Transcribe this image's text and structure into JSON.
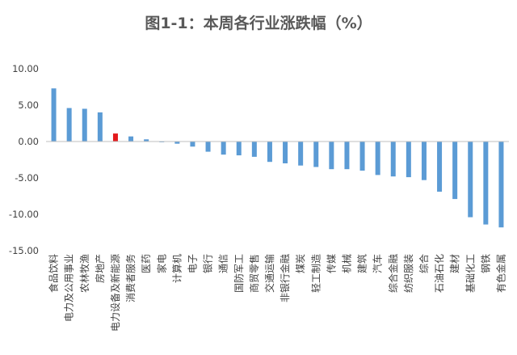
{
  "chart_data": {
    "type": "bar",
    "title": "图1-1：本周各行业涨跌幅（%）",
    "xlabel": "",
    "ylabel": "",
    "ylim": [
      -15,
      10
    ],
    "yticks": [
      "10.00",
      "5.00",
      "0.00",
      "-5.00",
      "-10.00",
      "-15.00"
    ],
    "grid": false,
    "legend": "none",
    "colors": {
      "bar": "#5b9bd5",
      "highlight": "#e31a1c",
      "axis": "#bfbfbf"
    },
    "highlight_index": 4,
    "categories": [
      "食品饮料",
      "电力及公用事业",
      "农林牧渔",
      "房地产",
      "电力设备及新能源",
      "消费者服务",
      "医药",
      "家电",
      "计算机",
      "电子",
      "银行",
      "通信",
      "国防军工",
      "商贸零售",
      "交通运输",
      "非银行金融",
      "煤炭",
      "轻工制造",
      "传媒",
      "机械",
      "建筑",
      "汽车",
      "综合金融",
      "纺织服装",
      "综合",
      "石油石化",
      "建材",
      "基础化工",
      "钢铁",
      "有色金属"
    ],
    "values": [
      7.3,
      4.6,
      4.5,
      4.0,
      1.1,
      0.7,
      0.3,
      -0.1,
      -0.3,
      -0.7,
      -1.4,
      -1.8,
      -1.9,
      -2.1,
      -2.8,
      -3.0,
      -3.3,
      -3.5,
      -3.8,
      -3.8,
      -4.0,
      -4.6,
      -4.8,
      -4.9,
      -5.3,
      -6.9,
      -7.9,
      -10.4,
      -11.4,
      -11.8
    ]
  }
}
